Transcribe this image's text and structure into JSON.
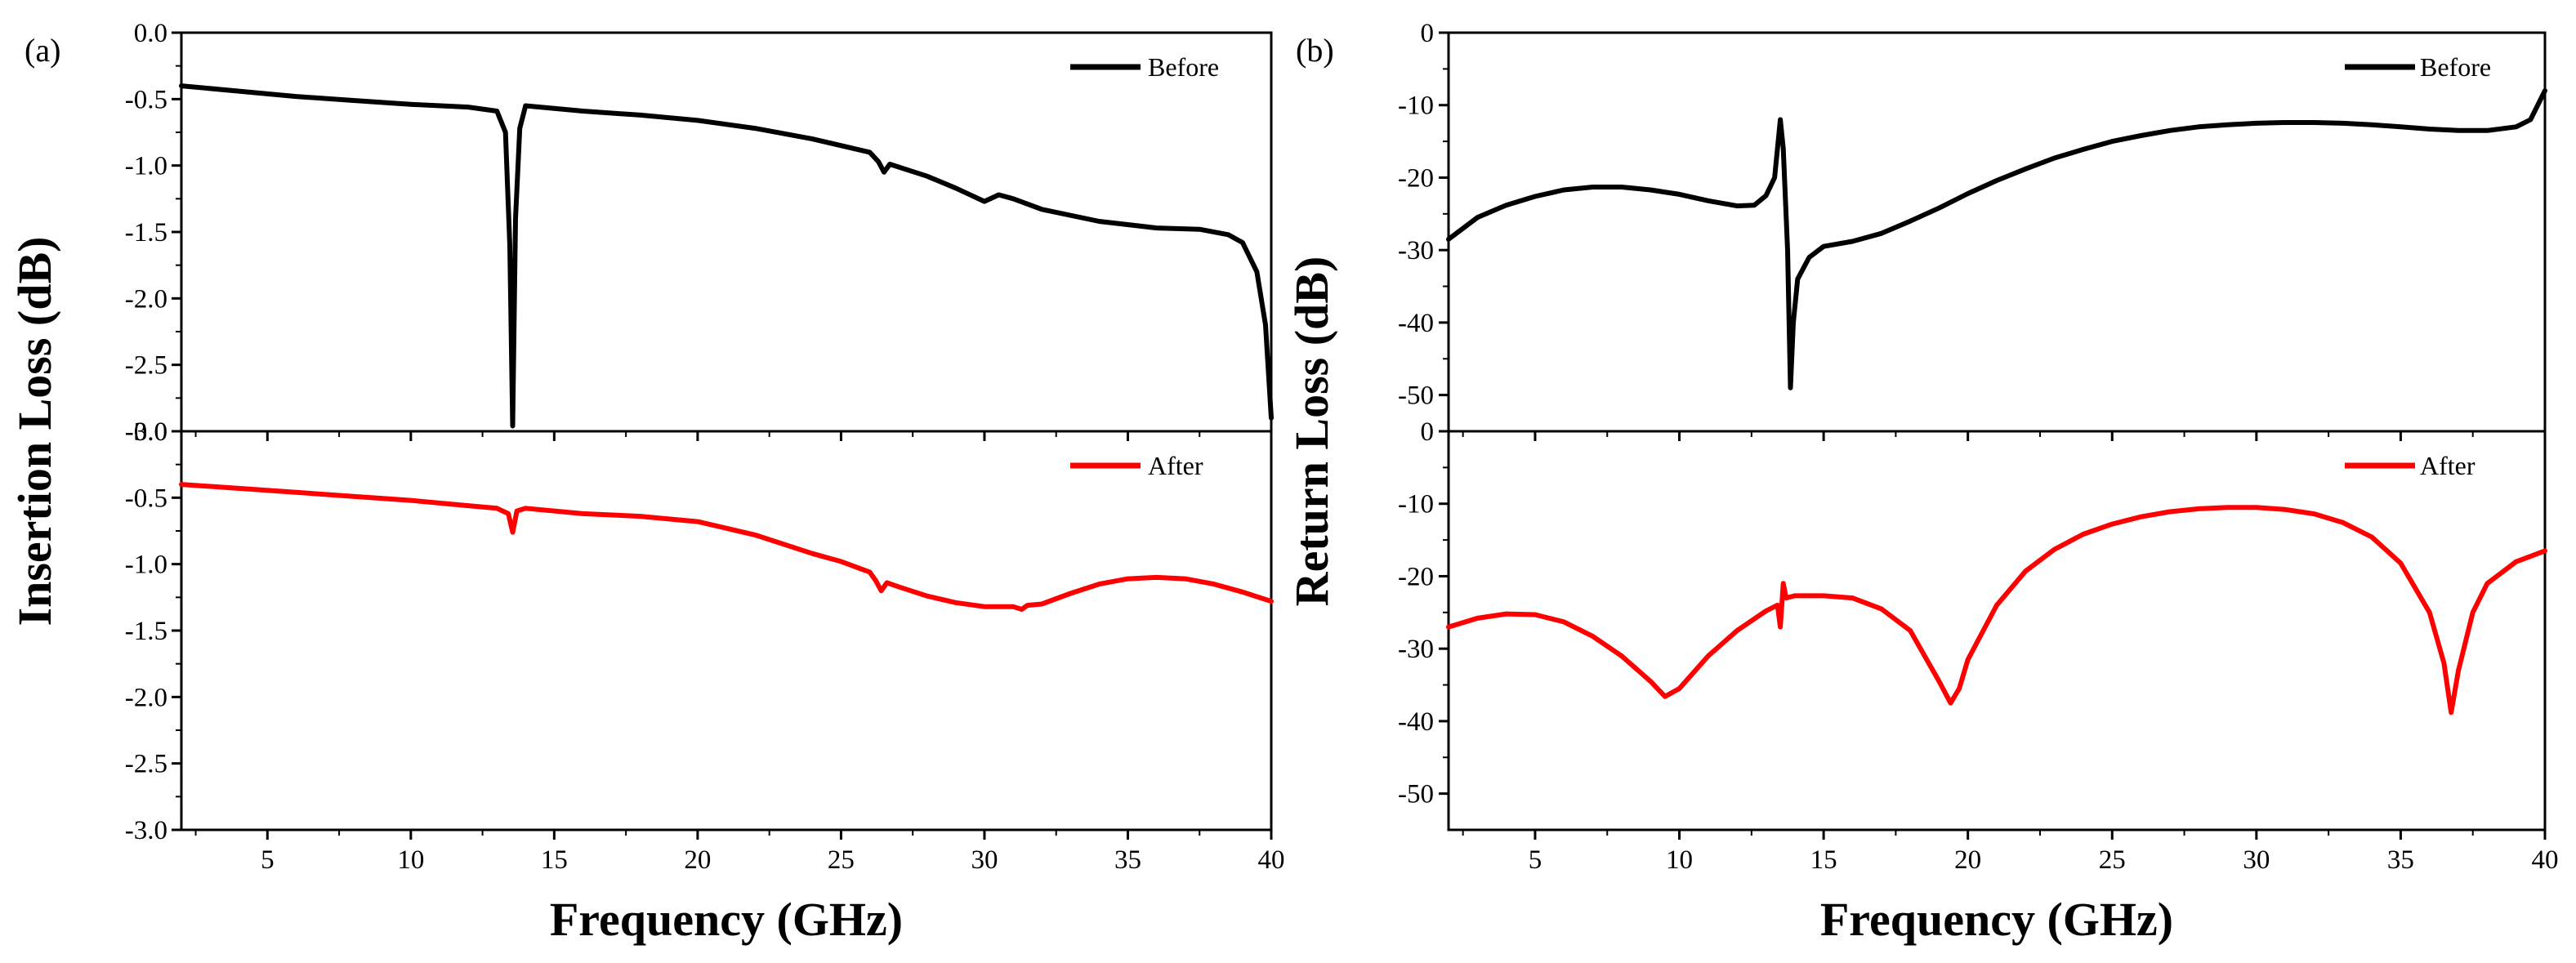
{
  "chart_data": [
    {
      "panel_label": "(a)",
      "type": "line",
      "xlabel": "Frequency (GHz)",
      "ylabel": "Insertion Loss (dB)",
      "xlim": [
        2,
        40
      ],
      "x_ticks": [
        5,
        10,
        15,
        20,
        25,
        30,
        35,
        40
      ],
      "subplots": [
        {
          "ylim": [
            -3.0,
            0.0
          ],
          "y_ticks": [
            "0.0",
            "-0.5",
            "-1.0",
            "-1.5",
            "-2.0",
            "-2.5",
            "-3.0"
          ],
          "y_tick_values": [
            0,
            -0.5,
            -1.0,
            -1.5,
            -2.0,
            -2.5,
            -3.0
          ],
          "y_tick_shown": [
            true,
            true,
            true,
            true,
            true,
            true,
            true
          ],
          "series": [
            {
              "name": "Before",
              "color": "#000000",
              "points": [
                [
                  2,
                  -0.4
                ],
                [
                  4,
                  -0.44
                ],
                [
                  6,
                  -0.48
                ],
                [
                  8,
                  -0.51
                ],
                [
                  10,
                  -0.54
                ],
                [
                  12,
                  -0.56
                ],
                [
                  13,
                  -0.59
                ],
                [
                  13.3,
                  -0.75
                ],
                [
                  13.45,
                  -1.6
                ],
                [
                  13.55,
                  -2.96
                ],
                [
                  13.65,
                  -1.4
                ],
                [
                  13.8,
                  -0.72
                ],
                [
                  14,
                  -0.55
                ],
                [
                  15,
                  -0.57
                ],
                [
                  16,
                  -0.59
                ],
                [
                  18,
                  -0.62
                ],
                [
                  20,
                  -0.66
                ],
                [
                  22,
                  -0.72
                ],
                [
                  24,
                  -0.8
                ],
                [
                  26,
                  -0.9
                ],
                [
                  26.3,
                  -0.97
                ],
                [
                  26.5,
                  -1.05
                ],
                [
                  26.7,
                  -0.99
                ],
                [
                  28,
                  -1.08
                ],
                [
                  29,
                  -1.17
                ],
                [
                  30,
                  -1.27
                ],
                [
                  30.5,
                  -1.22
                ],
                [
                  31,
                  -1.25
                ],
                [
                  32,
                  -1.33
                ],
                [
                  34,
                  -1.42
                ],
                [
                  36,
                  -1.47
                ],
                [
                  37.5,
                  -1.48
                ],
                [
                  38.5,
                  -1.52
                ],
                [
                  39,
                  -1.58
                ],
                [
                  39.5,
                  -1.8
                ],
                [
                  39.8,
                  -2.2
                ],
                [
                  40,
                  -2.9
                ]
              ]
            }
          ]
        },
        {
          "ylim": [
            -3.0,
            0.0
          ],
          "y_ticks": [
            "0.0",
            "-0.5",
            "-1.0",
            "-1.5",
            "-2.0",
            "-2.5",
            "-3.0"
          ],
          "y_tick_values": [
            0,
            -0.5,
            -1.0,
            -1.5,
            -2.0,
            -2.5,
            -3.0
          ],
          "y_tick_shown": [
            true,
            true,
            true,
            true,
            true,
            true,
            true
          ],
          "series": [
            {
              "name": "After",
              "color": "#ff0000",
              "points": [
                [
                  2,
                  -0.4
                ],
                [
                  4,
                  -0.43
                ],
                [
                  6,
                  -0.46
                ],
                [
                  8,
                  -0.49
                ],
                [
                  10,
                  -0.52
                ],
                [
                  12,
                  -0.56
                ],
                [
                  13,
                  -0.58
                ],
                [
                  13.4,
                  -0.62
                ],
                [
                  13.55,
                  -0.76
                ],
                [
                  13.7,
                  -0.6
                ],
                [
                  14,
                  -0.58
                ],
                [
                  16,
                  -0.62
                ],
                [
                  18,
                  -0.64
                ],
                [
                  20,
                  -0.68
                ],
                [
                  22,
                  -0.78
                ],
                [
                  24,
                  -0.92
                ],
                [
                  25,
                  -0.98
                ],
                [
                  26,
                  -1.06
                ],
                [
                  26.2,
                  -1.12
                ],
                [
                  26.4,
                  -1.2
                ],
                [
                  26.6,
                  -1.14
                ],
                [
                  27,
                  -1.17
                ],
                [
                  28,
                  -1.24
                ],
                [
                  29,
                  -1.29
                ],
                [
                  30,
                  -1.32
                ],
                [
                  31,
                  -1.32
                ],
                [
                  31.3,
                  -1.34
                ],
                [
                  31.5,
                  -1.31
                ],
                [
                  32,
                  -1.3
                ],
                [
                  33,
                  -1.22
                ],
                [
                  34,
                  -1.15
                ],
                [
                  35,
                  -1.11
                ],
                [
                  36,
                  -1.1
                ],
                [
                  37,
                  -1.11
                ],
                [
                  38,
                  -1.15
                ],
                [
                  39,
                  -1.21
                ],
                [
                  40,
                  -1.28
                ]
              ]
            }
          ]
        }
      ]
    },
    {
      "panel_label": "(b)",
      "type": "line",
      "xlabel": "Frequency (GHz)",
      "ylabel": "Return Loss (dB)",
      "xlim": [
        2,
        40
      ],
      "x_ticks": [
        5,
        10,
        15,
        20,
        25,
        30,
        35,
        40
      ],
      "subplots": [
        {
          "ylim": [
            -55,
            0
          ],
          "y_ticks": [
            "0",
            "-10",
            "-20",
            "-30",
            "-40",
            "-50"
          ],
          "y_tick_values": [
            0,
            -10,
            -20,
            -30,
            -40,
            -50
          ],
          "y_tick_shown": [
            true,
            true,
            true,
            true,
            true,
            true
          ],
          "series": [
            {
              "name": "Before",
              "color": "#000000",
              "points": [
                [
                  2,
                  -28.5
                ],
                [
                  3,
                  -25.5
                ],
                [
                  4,
                  -23.8
                ],
                [
                  5,
                  -22.6
                ],
                [
                  6,
                  -21.7
                ],
                [
                  7,
                  -21.3
                ],
                [
                  8,
                  -21.3
                ],
                [
                  9,
                  -21.7
                ],
                [
                  10,
                  -22.3
                ],
                [
                  11,
                  -23.2
                ],
                [
                  12,
                  -23.9
                ],
                [
                  12.6,
                  -23.8
                ],
                [
                  13,
                  -22.5
                ],
                [
                  13.3,
                  -20.0
                ],
                [
                  13.5,
                  -12.0
                ],
                [
                  13.6,
                  -16.0
                ],
                [
                  13.75,
                  -30.0
                ],
                [
                  13.85,
                  -49.0
                ],
                [
                  13.95,
                  -40.0
                ],
                [
                  14.1,
                  -34.0
                ],
                [
                  14.5,
                  -31.0
                ],
                [
                  15,
                  -29.5
                ],
                [
                  16,
                  -28.8
                ],
                [
                  17,
                  -27.7
                ],
                [
                  18,
                  -26.0
                ],
                [
                  19,
                  -24.2
                ],
                [
                  20,
                  -22.2
                ],
                [
                  21,
                  -20.4
                ],
                [
                  22,
                  -18.8
                ],
                [
                  23,
                  -17.3
                ],
                [
                  24,
                  -16.1
                ],
                [
                  25,
                  -15.0
                ],
                [
                  26,
                  -14.2
                ],
                [
                  27,
                  -13.5
                ],
                [
                  28,
                  -13.0
                ],
                [
                  29,
                  -12.7
                ],
                [
                  30,
                  -12.5
                ],
                [
                  31,
                  -12.4
                ],
                [
                  32,
                  -12.4
                ],
                [
                  33,
                  -12.5
                ],
                [
                  34,
                  -12.7
                ],
                [
                  35,
                  -13.0
                ],
                [
                  36,
                  -13.3
                ],
                [
                  37,
                  -13.5
                ],
                [
                  38,
                  -13.5
                ],
                [
                  39,
                  -13.0
                ],
                [
                  39.5,
                  -12.0
                ],
                [
                  40,
                  -8.0
                ]
              ]
            }
          ]
        },
        {
          "ylim": [
            -55,
            0
          ],
          "y_ticks": [
            "0",
            "-10",
            "-20",
            "-30",
            "-40",
            "-50"
          ],
          "y_tick_values": [
            0,
            -10,
            -20,
            -30,
            -40,
            -50
          ],
          "y_tick_shown": [
            true,
            true,
            true,
            true,
            true,
            true
          ],
          "series": [
            {
              "name": "After",
              "color": "#ff0000",
              "points": [
                [
                  2,
                  -27.0
                ],
                [
                  3,
                  -25.8
                ],
                [
                  4,
                  -25.2
                ],
                [
                  5,
                  -25.3
                ],
                [
                  6,
                  -26.3
                ],
                [
                  7,
                  -28.3
                ],
                [
                  8,
                  -31.0
                ],
                [
                  9,
                  -34.5
                ],
                [
                  9.5,
                  -36.6
                ],
                [
                  10,
                  -35.5
                ],
                [
                  11,
                  -31.0
                ],
                [
                  12,
                  -27.5
                ],
                [
                  13,
                  -24.8
                ],
                [
                  13.4,
                  -24.0
                ],
                [
                  13.5,
                  -27.0
                ],
                [
                  13.6,
                  -21.0
                ],
                [
                  13.7,
                  -23.0
                ],
                [
                  14,
                  -22.7
                ],
                [
                  15,
                  -22.7
                ],
                [
                  16,
                  -23.0
                ],
                [
                  17,
                  -24.5
                ],
                [
                  18,
                  -27.5
                ],
                [
                  19,
                  -34.5
                ],
                [
                  19.4,
                  -37.5
                ],
                [
                  19.7,
                  -35.5
                ],
                [
                  20,
                  -31.5
                ],
                [
                  21,
                  -24.0
                ],
                [
                  22,
                  -19.3
                ],
                [
                  23,
                  -16.3
                ],
                [
                  24,
                  -14.2
                ],
                [
                  25,
                  -12.8
                ],
                [
                  26,
                  -11.8
                ],
                [
                  27,
                  -11.1
                ],
                [
                  28,
                  -10.7
                ],
                [
                  29,
                  -10.5
                ],
                [
                  30,
                  -10.5
                ],
                [
                  31,
                  -10.8
                ],
                [
                  32,
                  -11.4
                ],
                [
                  33,
                  -12.6
                ],
                [
                  34,
                  -14.6
                ],
                [
                  35,
                  -18.2
                ],
                [
                  36,
                  -25.0
                ],
                [
                  36.5,
                  -32.0
                ],
                [
                  36.75,
                  -38.8
                ],
                [
                  37,
                  -33.0
                ],
                [
                  37.5,
                  -25.0
                ],
                [
                  38,
                  -21.0
                ],
                [
                  39,
                  -18.0
                ],
                [
                  40,
                  -16.5
                ]
              ]
            }
          ]
        }
      ]
    }
  ]
}
